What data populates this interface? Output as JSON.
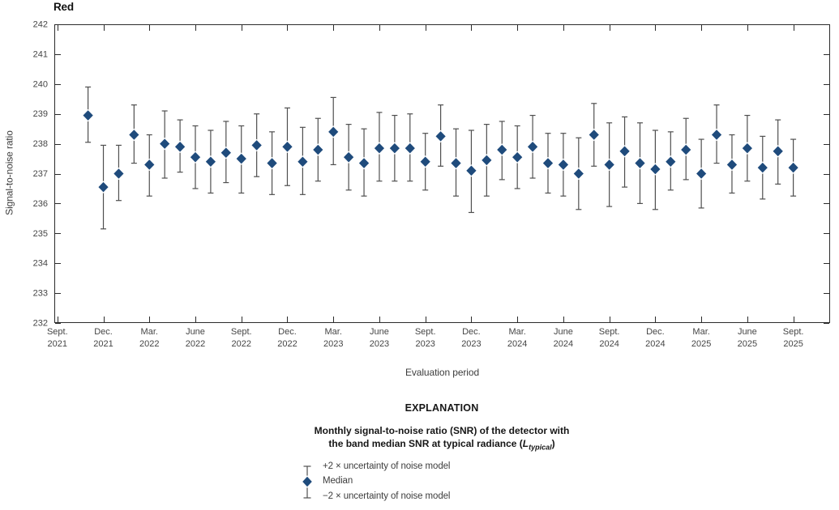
{
  "chart_data": {
    "type": "scatter-errorbar",
    "title": "Red",
    "xlabel": "Evaluation period",
    "ylabel": "Signal-to-noise ratio",
    "ylim": [
      232,
      242
    ],
    "y_ticks": [
      232,
      233,
      234,
      235,
      236,
      237,
      238,
      239,
      240,
      241,
      242
    ],
    "x_tick_labels": [
      "Sept. 2021",
      "Dec. 2021",
      "Mar. 2022",
      "June 2022",
      "Sept. 2022",
      "Dec. 2022",
      "Mar. 2023",
      "June 2023",
      "Sept. 2023",
      "Dec. 2023",
      "Mar. 2024",
      "June 2024",
      "Sept. 2024",
      "Dec. 2024",
      "Mar. 2025",
      "June 2025",
      "Sept. 2025"
    ],
    "x_tick_month_offsets": [
      0,
      3,
      6,
      9,
      12,
      15,
      18,
      21,
      24,
      27,
      30,
      33,
      36,
      39,
      42,
      45,
      48
    ],
    "x_axis_range_months": [
      -0.2,
      50.4
    ],
    "start_month_offset": 2,
    "grid": false,
    "legend_position": "below",
    "months": [
      "Nov. 2021",
      "Dec. 2021",
      "Jan. 2022",
      "Feb. 2022",
      "Mar. 2022",
      "Apr. 2022",
      "May 2022",
      "June 2022",
      "July 2022",
      "Aug. 2022",
      "Sept. 2022",
      "Oct. 2022",
      "Nov. 2022",
      "Dec. 2022",
      "Jan. 2023",
      "Feb. 2023",
      "Mar. 2023",
      "Apr. 2023",
      "May 2023",
      "June 2023",
      "July 2023",
      "Aug. 2023",
      "Sept. 2023",
      "Oct. 2023",
      "Nov. 2023",
      "Dec. 2023",
      "Jan. 2024",
      "Feb. 2024",
      "Mar. 2024",
      "Apr. 2024",
      "May 2024",
      "June 2024",
      "July 2024",
      "Aug. 2024",
      "Sept. 2024",
      "Oct. 2024",
      "Nov. 2024",
      "Dec. 2024",
      "Jan. 2025",
      "Feb. 2025",
      "Mar. 2025",
      "Apr. 2025",
      "May 2025",
      "June 2025",
      "July 2025",
      "Aug. 2025",
      "Sept. 2025"
    ],
    "median": [
      238.95,
      236.55,
      237.0,
      238.3,
      237.3,
      238.0,
      237.9,
      237.55,
      237.4,
      237.7,
      237.5,
      237.95,
      237.35,
      237.9,
      237.4,
      237.8,
      238.4,
      237.55,
      237.35,
      237.85,
      237.85,
      237.85,
      237.4,
      238.25,
      237.35,
      237.1,
      237.45,
      237.8,
      237.55,
      237.9,
      237.35,
      237.3,
      237.0,
      238.3,
      237.3,
      237.75,
      237.35,
      237.15,
      237.4,
      237.8,
      237.0,
      238.3,
      237.3,
      237.85,
      237.2,
      237.75,
      237.2
    ],
    "upper": [
      239.9,
      237.95,
      237.95,
      239.3,
      238.3,
      239.1,
      238.8,
      238.6,
      238.45,
      238.75,
      238.6,
      239.0,
      238.4,
      239.2,
      238.55,
      238.85,
      239.55,
      238.65,
      238.5,
      239.05,
      238.95,
      239.0,
      238.35,
      239.3,
      238.5,
      238.45,
      238.65,
      238.75,
      238.6,
      238.95,
      238.35,
      238.35,
      238.2,
      239.35,
      238.7,
      238.9,
      238.7,
      238.45,
      238.4,
      238.85,
      238.15,
      239.3,
      238.3,
      238.95,
      238.25,
      238.8,
      238.15
    ],
    "lower": [
      238.05,
      235.15,
      236.1,
      237.35,
      236.25,
      236.85,
      237.05,
      236.5,
      236.35,
      236.7,
      236.35,
      236.9,
      236.3,
      236.6,
      236.3,
      236.75,
      237.3,
      236.45,
      236.25,
      236.75,
      236.75,
      236.75,
      236.45,
      237.25,
      236.25,
      235.7,
      236.25,
      236.8,
      236.5,
      236.85,
      236.35,
      236.25,
      235.8,
      237.25,
      235.9,
      236.55,
      236.0,
      235.8,
      236.45,
      236.8,
      235.85,
      237.35,
      236.35,
      236.75,
      236.15,
      236.65,
      236.25
    ],
    "colors": {
      "median_diamond": "#1f4b7c",
      "error_bar": "#4f4f4f",
      "axis": "#2b2b2b",
      "tick_label": "#454545"
    }
  },
  "explanation": {
    "heading": "EXPLANATION",
    "caption_line1": "Monthly signal-to-noise ratio (SNR) of the detector with",
    "caption_line2_prefix": "the band median SNR at typical radiance (",
    "caption_symbol": "L",
    "caption_subscript": "typical",
    "caption_suffix": ")",
    "legend_items": [
      {
        "label": "+2 × uncertainty of noise model"
      },
      {
        "label": "Median"
      },
      {
        "label": "−2 × uncertainty of noise model"
      }
    ]
  }
}
